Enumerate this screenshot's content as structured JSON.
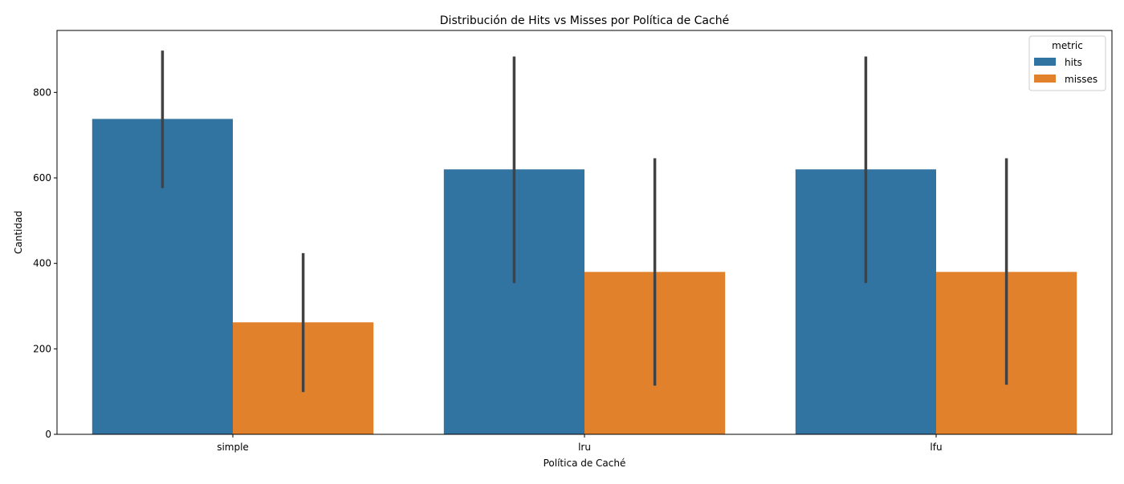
{
  "chart_data": {
    "type": "bar",
    "title": "Distribución de Hits vs Misses por Política de Caché",
    "xlabel": "Política de Caché",
    "ylabel": "Cantidad",
    "categories": [
      "simple",
      "lru",
      "lfu"
    ],
    "ylim": [
      0,
      945
    ],
    "yticks": [
      0,
      200,
      400,
      600,
      800
    ],
    "grid": false,
    "legend": {
      "title": "metric",
      "placement": "top-right"
    },
    "series": [
      {
        "name": "hits",
        "color": "#3274a1",
        "values": [
          738,
          620,
          620
        ],
        "error_low": [
          576,
          354,
          354
        ],
        "error_high": [
          898,
          884,
          884
        ]
      },
      {
        "name": "misses",
        "color": "#e1812c",
        "values": [
          262,
          380,
          380
        ],
        "error_low": [
          99,
          114,
          116
        ],
        "error_high": [
          424,
          646,
          646
        ]
      }
    ],
    "error_bar_color": "#424242"
  }
}
